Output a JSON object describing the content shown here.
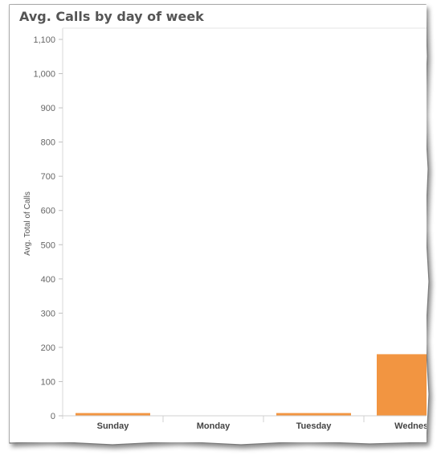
{
  "chart_data": {
    "type": "bar",
    "title": "Avg. Calls by day of week",
    "ylabel": "Avg. Total of Calls",
    "xlabel": "",
    "categories": [
      "Sunday",
      "Monday",
      "Tuesday",
      "Wednesday"
    ],
    "category_labels": [
      "Sunday",
      "Monday",
      "Tuesday",
      "Wednesd"
    ],
    "values": [
      8,
      0,
      8,
      180
    ],
    "ylim": [
      0,
      1100
    ],
    "yticks": [
      0,
      100,
      200,
      300,
      400,
      500,
      600,
      700,
      800,
      900,
      1000,
      1100
    ],
    "ytick_labels": [
      "0",
      "100",
      "200",
      "300",
      "400",
      "500",
      "600",
      "700",
      "800",
      "900",
      "1,000",
      "1,100"
    ],
    "bar_color": "#F29541",
    "grid": false,
    "legend": "none"
  }
}
